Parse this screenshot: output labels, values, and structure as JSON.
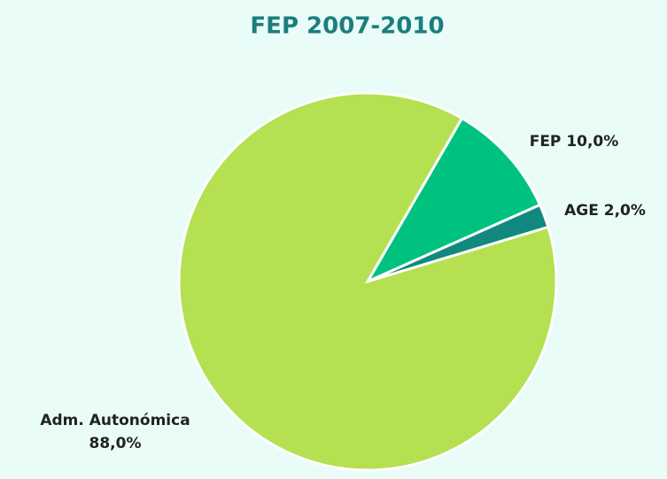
{
  "chart_data": {
    "type": "pie",
    "title": "FEP 2007-2010",
    "categories": [
      "FEP",
      "AGE",
      "Adm. Autonómica"
    ],
    "values": [
      10,
      2,
      88
    ],
    "value_labels": [
      "10,0%",
      "2,0%",
      "88,0%"
    ],
    "colors": [
      "#00c27f",
      "#12897f",
      "#b5e051"
    ]
  }
}
